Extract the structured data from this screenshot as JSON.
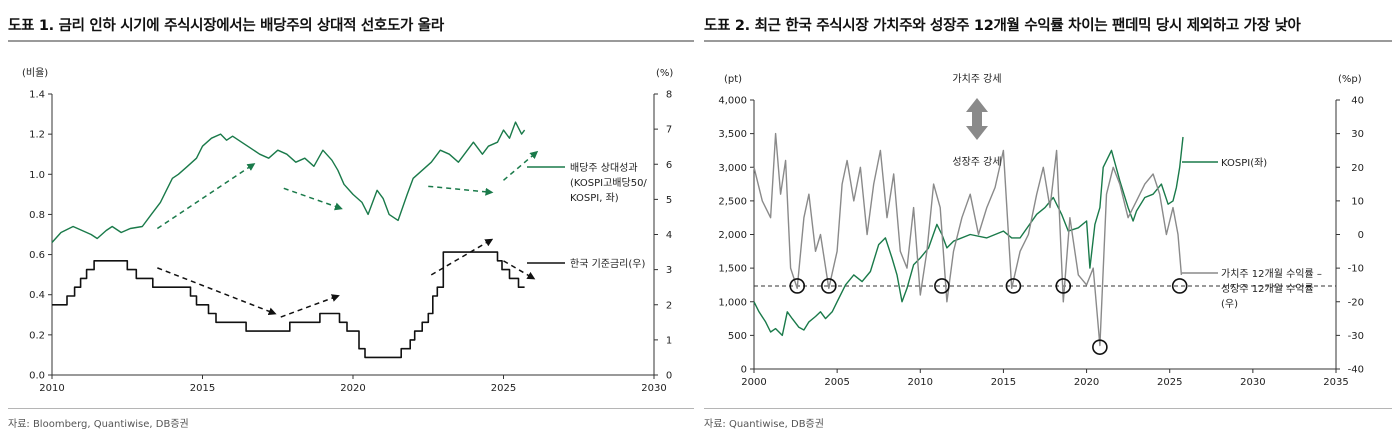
{
  "panel1": {
    "title": "도표 1. 금리 인하 시기에 주식시장에서는 배당주의 상대적 선호도가 올라",
    "source": "자료: Bloomberg, Quantiwise, DB증권",
    "chart_data": {
      "type": "line",
      "left_unit": "(비율)",
      "right_unit": "(%)",
      "x_ticks": [
        "2010",
        "2015",
        "2020",
        "2025",
        "2030"
      ],
      "left_ticks": [
        "0.0",
        "0.2",
        "0.4",
        "0.6",
        "0.8",
        "1.0",
        "1.2",
        "1.4"
      ],
      "right_ticks": [
        "0",
        "1",
        "2",
        "3",
        "4",
        "5",
        "6",
        "7",
        "8"
      ],
      "xlim": [
        2010,
        2030
      ],
      "ylim_left": [
        0,
        1.4
      ],
      "ylim_right": [
        0,
        8
      ],
      "series": [
        {
          "name": "배당주 상대성과 (KOSPI고배당50/ KOSPI, 좌)",
          "legend_lines": [
            "배당주 상대성과",
            "(KOSPI고배당50/",
            "KOSPI, 좌)"
          ],
          "axis": "left",
          "color": "#1a7a4a",
          "x": [
            2010.0,
            2010.3,
            2010.7,
            2011.0,
            2011.3,
            2011.5,
            2011.8,
            2012.0,
            2012.3,
            2012.6,
            2013.0,
            2013.3,
            2013.6,
            2013.8,
            2014.0,
            2014.2,
            2014.5,
            2014.8,
            2015.0,
            2015.3,
            2015.6,
            2015.8,
            2016.0,
            2016.3,
            2016.6,
            2016.9,
            2017.2,
            2017.5,
            2017.8,
            2018.1,
            2018.4,
            2018.7,
            2019.0,
            2019.3,
            2019.5,
            2019.7,
            2020.0,
            2020.3,
            2020.5,
            2020.8,
            2021.0,
            2021.2,
            2021.5,
            2021.8,
            2022.0,
            2022.3,
            2022.6,
            2022.9,
            2023.2,
            2023.5,
            2023.8,
            2024.0,
            2024.3,
            2024.5,
            2024.8,
            2025.0,
            2025.2,
            2025.4,
            2025.6,
            2025.7
          ],
          "values": [
            0.66,
            0.71,
            0.74,
            0.72,
            0.7,
            0.68,
            0.72,
            0.74,
            0.71,
            0.73,
            0.74,
            0.8,
            0.86,
            0.92,
            0.98,
            1.0,
            1.04,
            1.08,
            1.14,
            1.18,
            1.2,
            1.17,
            1.19,
            1.16,
            1.13,
            1.1,
            1.08,
            1.12,
            1.1,
            1.06,
            1.08,
            1.04,
            1.12,
            1.07,
            1.02,
            0.95,
            0.9,
            0.86,
            0.8,
            0.92,
            0.88,
            0.8,
            0.77,
            0.9,
            0.98,
            1.02,
            1.06,
            1.12,
            1.1,
            1.06,
            1.12,
            1.16,
            1.1,
            1.14,
            1.16,
            1.22,
            1.18,
            1.26,
            1.2,
            1.22
          ]
        },
        {
          "name": "한국 기준금리(우)",
          "legend_lines": [
            "한국 기준금리(우)"
          ],
          "axis": "right",
          "color": "#111111",
          "step": true,
          "x": [
            2010.0,
            2010.5,
            2010.75,
            2010.95,
            2011.15,
            2011.4,
            2011.5,
            2012.5,
            2012.8,
            2013.35,
            2014.6,
            2014.8,
            2015.2,
            2015.45,
            2016.45,
            2017.9,
            2018.9,
            2019.55,
            2019.8,
            2020.2,
            2020.4,
            2021.6,
            2021.9,
            2022.05,
            2022.3,
            2022.5,
            2022.65,
            2022.8,
            2023.0,
            2024.8,
            2024.95,
            2025.2,
            2025.5,
            2025.7
          ],
          "values": [
            2.0,
            2.25,
            2.5,
            2.75,
            3.0,
            3.25,
            3.25,
            3.0,
            2.75,
            2.5,
            2.25,
            2.0,
            1.75,
            1.5,
            1.25,
            1.5,
            1.75,
            1.5,
            1.25,
            0.75,
            0.5,
            0.75,
            1.0,
            1.25,
            1.5,
            1.75,
            2.25,
            2.5,
            3.5,
            3.25,
            3.0,
            2.75,
            2.5,
            2.5
          ]
        }
      ],
      "annotations": [
        {
          "style": "dashed-arrow",
          "color": "#1a7a4a",
          "axis": "left",
          "from": [
            2013.5,
            0.73
          ],
          "to": [
            2016.7,
            1.05
          ]
        },
        {
          "style": "dashed-arrow",
          "color": "#1a7a4a",
          "axis": "left",
          "from": [
            2017.7,
            0.93
          ],
          "to": [
            2019.6,
            0.83
          ]
        },
        {
          "style": "dashed-arrow",
          "color": "#1a7a4a",
          "axis": "left",
          "from": [
            2022.5,
            0.94
          ],
          "to": [
            2024.6,
            0.91
          ]
        },
        {
          "style": "dashed-arrow",
          "color": "#1a7a4a",
          "axis": "left",
          "from": [
            2025.0,
            0.97
          ],
          "to": [
            2026.1,
            1.11
          ]
        },
        {
          "style": "dashed-arrow",
          "color": "#111111",
          "axis": "right",
          "from": [
            2013.5,
            3.05
          ],
          "to": [
            2017.4,
            1.75
          ]
        },
        {
          "style": "dashed-arrow",
          "color": "#111111",
          "axis": "right",
          "from": [
            2017.6,
            1.65
          ],
          "to": [
            2019.5,
            2.25
          ]
        },
        {
          "style": "dashed-arrow",
          "color": "#111111",
          "axis": "right",
          "from": [
            2022.6,
            2.85
          ],
          "to": [
            2024.6,
            3.85
          ]
        },
        {
          "style": "dashed-arrow",
          "color": "#111111",
          "axis": "right",
          "from": [
            2025.0,
            3.25
          ],
          "to": [
            2026.0,
            2.75
          ]
        }
      ]
    }
  },
  "panel2": {
    "title": "도표 2. 최근 한국 주식시장 가치주와 성장주 12개월 수익률 차이는 팬데믹 당시 제외하고 가장 낮아",
    "source": "자료: Quantiwise, DB증권",
    "label_value_up": "가치주 강세",
    "label_growth_up": "성장주 강세",
    "chart_data": {
      "type": "line",
      "left_unit": "(pt)",
      "right_unit": "(%p)",
      "x_ticks": [
        "2000",
        "2005",
        "2010",
        "2015",
        "2020",
        "2025",
        "2030",
        "2035"
      ],
      "left_ticks": [
        "0",
        "500",
        "1,000",
        "1,500",
        "2,000",
        "2,500",
        "3,000",
        "3,500",
        "4,000"
      ],
      "right_ticks": [
        "-40",
        "-30",
        "-20",
        "-10",
        "0",
        "10",
        "20",
        "30",
        "40"
      ],
      "xlim": [
        2000,
        2035
      ],
      "ylim_left": [
        0,
        4000
      ],
      "ylim_right": [
        -40,
        40
      ],
      "series": [
        {
          "name": "KOSPI(좌)",
          "legend_lines": [
            "KOSPI(좌)"
          ],
          "axis": "left",
          "color": "#1a7a4a",
          "x": [
            2000.0,
            2000.3,
            2000.7,
            2001.0,
            2001.3,
            2001.7,
            2002.0,
            2002.3,
            2002.7,
            2003.0,
            2003.3,
            2003.7,
            2004.0,
            2004.3,
            2004.7,
            2005.0,
            2005.5,
            2006.0,
            2006.5,
            2007.0,
            2007.5,
            2007.9,
            2008.3,
            2008.6,
            2008.9,
            2009.2,
            2009.6,
            2010.0,
            2010.5,
            2011.0,
            2011.3,
            2011.6,
            2012.0,
            2013.0,
            2014.0,
            2015.0,
            2015.5,
            2016.0,
            2017.0,
            2017.5,
            2018.0,
            2018.5,
            2018.9,
            2019.5,
            2020.0,
            2020.2,
            2020.5,
            2020.8,
            2021.0,
            2021.5,
            2022.0,
            2022.5,
            2022.8,
            2023.0,
            2023.5,
            2024.0,
            2024.5,
            2024.9,
            2025.2,
            2025.4,
            2025.6,
            2025.8
          ],
          "values": [
            1000,
            850,
            700,
            550,
            600,
            500,
            850,
            750,
            620,
            580,
            700,
            780,
            850,
            750,
            850,
            1000,
            1250,
            1400,
            1300,
            1450,
            1850,
            1950,
            1650,
            1400,
            1000,
            1200,
            1550,
            1650,
            1800,
            2150,
            2000,
            1800,
            1900,
            2000,
            1950,
            2050,
            1950,
            1950,
            2300,
            2400,
            2550,
            2300,
            2050,
            2100,
            2200,
            1500,
            2150,
            2400,
            3000,
            3250,
            2800,
            2400,
            2200,
            2350,
            2550,
            2600,
            2750,
            2450,
            2500,
            2700,
            3000,
            3450
          ]
        },
        {
          "name": "가치주 12개월 수익률 – 성장주 12개월 수익률 (우)",
          "legend_lines": [
            "가치주 12개월 수익률 –",
            "성장주 12개월 수익률",
            "(우)"
          ],
          "axis": "right",
          "color": "#8a8a8a",
          "x": [
            2000.0,
            2000.5,
            2001.0,
            2001.3,
            2001.6,
            2001.9,
            2002.2,
            2002.6,
            2003.0,
            2003.3,
            2003.7,
            2004.0,
            2004.5,
            2005.0,
            2005.3,
            2005.6,
            2006.0,
            2006.4,
            2006.8,
            2007.2,
            2007.6,
            2008.0,
            2008.4,
            2008.8,
            2009.2,
            2009.6,
            2010.0,
            2010.4,
            2010.8,
            2011.2,
            2011.6,
            2012.0,
            2012.5,
            2013.0,
            2013.5,
            2014.0,
            2014.5,
            2015.0,
            2015.5,
            2016.0,
            2016.5,
            2017.0,
            2017.4,
            2017.8,
            2018.2,
            2018.6,
            2019.0,
            2019.5,
            2020.0,
            2020.4,
            2020.8,
            2021.2,
            2021.6,
            2022.0,
            2022.5,
            2023.0,
            2023.5,
            2024.0,
            2024.4,
            2024.8,
            2025.2,
            2025.5,
            2025.7
          ],
          "values": [
            20,
            10,
            5,
            30,
            12,
            22,
            -10,
            -16,
            5,
            12,
            -5,
            0,
            -16,
            -5,
            15,
            22,
            10,
            20,
            0,
            15,
            25,
            5,
            18,
            -5,
            -10,
            8,
            -18,
            -5,
            15,
            8,
            -20,
            -5,
            5,
            12,
            0,
            8,
            14,
            25,
            -16,
            -5,
            0,
            12,
            20,
            8,
            25,
            -20,
            5,
            -12,
            -15,
            -10,
            -33,
            12,
            20,
            15,
            5,
            10,
            15,
            18,
            12,
            0,
            8,
            0,
            -12
          ]
        }
      ],
      "reference_line": {
        "axis": "right",
        "value": -15.3,
        "style": "dashed"
      },
      "circle_markers": [
        {
          "x": 2002.6,
          "value": -15.3
        },
        {
          "x": 2004.5,
          "value": -15.3
        },
        {
          "x": 2011.3,
          "value": -15.3
        },
        {
          "x": 2015.6,
          "value": -15.3
        },
        {
          "x": 2018.6,
          "value": -15.3
        },
        {
          "x": 2020.8,
          "value": -33.5
        },
        {
          "x": 2025.6,
          "value": -15.3
        }
      ]
    }
  }
}
